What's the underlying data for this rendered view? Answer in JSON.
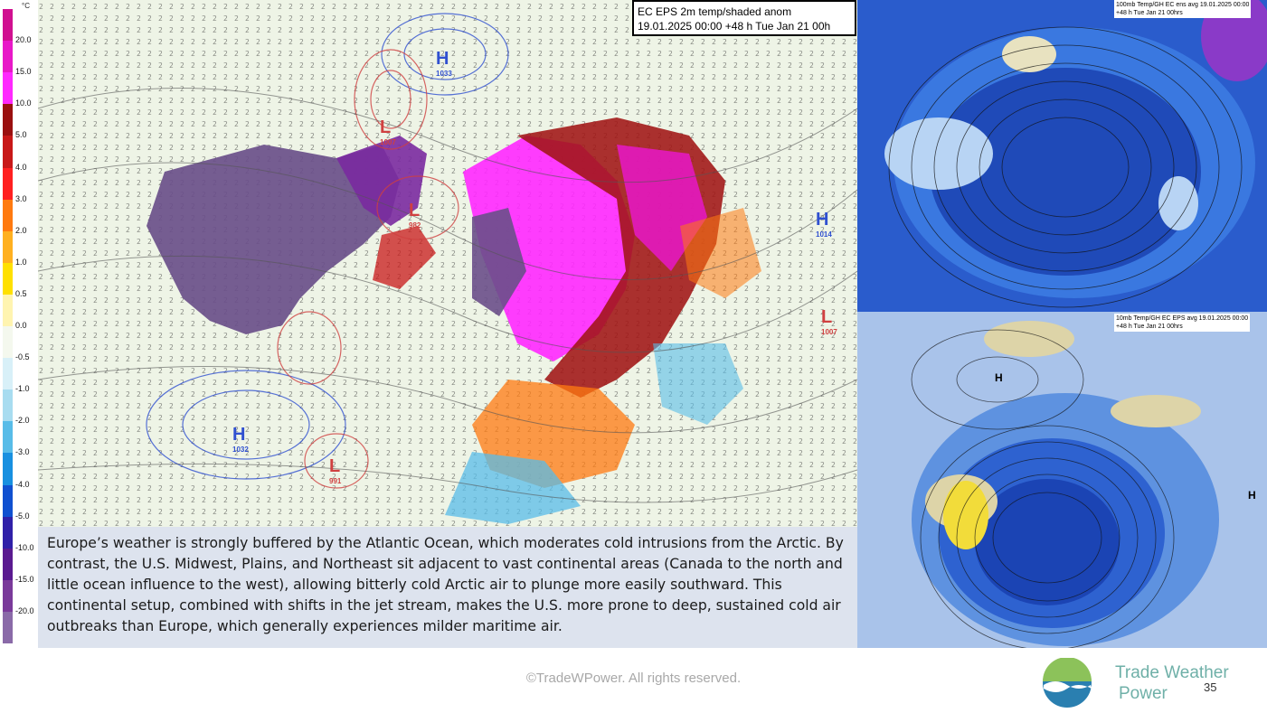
{
  "legend": {
    "unit": "°C",
    "ticks": [
      "20.0",
      "15.0",
      "10.0",
      "5.0",
      "4.0",
      "3.0",
      "2.0",
      "1.0",
      "0.5",
      "0.0",
      "-0.5",
      "-1.0",
      "-2.0",
      "-3.0",
      "-4.0",
      "-5.0",
      "-10.0",
      "-15.0",
      "-20.0"
    ],
    "colors": [
      "#d01090",
      "#e818c8",
      "#ff28ff",
      "#9a1010",
      "#c81818",
      "#ff2020",
      "#ff7a10",
      "#ffb020",
      "#ffe000",
      "#fff4b0",
      "#f4f8ee",
      "#d8f0f8",
      "#a8dcf0",
      "#58bce8",
      "#1890e0",
      "#1050d0",
      "#3020a8",
      "#5a1a90",
      "#7a3a9a",
      "#8a6aa8"
    ]
  },
  "main_map": {
    "title_line1": "EC EPS 2m temp/shaded anom",
    "title_line2": "19.01.2025 00:00 +48 h Tue Jan 21 00h",
    "pressure_labels": [
      {
        "letter": "H",
        "value": "1033"
      },
      {
        "letter": "L",
        "value": "1007"
      },
      {
        "letter": "H",
        "value": "1032"
      },
      {
        "letter": "L",
        "value": "991"
      },
      {
        "letter": "L",
        "value": "982"
      },
      {
        "letter": "H",
        "value": "1014"
      },
      {
        "letter": "L",
        "value": "1007"
      }
    ]
  },
  "top_right_map": {
    "title_line1": "100mb Temp/GH  EC ens avg 19.01.2025 00:00",
    "title_line2": "+48 h Tue Jan 21 00hrs"
  },
  "bottom_right_map": {
    "title_line1": "10mb Temp/GH EC EPS avg 19.01.2025 00:00",
    "title_line2": "+48 h Tue Jan 21 00hrs",
    "labels": [
      "H",
      "H"
    ]
  },
  "caption": "Europe’s weather is strongly buffered by the Atlantic Ocean, which moderates cold intrusions from the Arctic. By contrast, the U.S. Midwest, Plains, and Northeast sit adjacent to vast continental areas (Canada to the north and little ocean influence to the west), allowing bitterly cold Arctic air to plunge more easily southward. This continental setup, combined with shifts in the jet stream, makes the U.S. more prone to deep, sustained cold air outbreaks than Europe, which generally experiences milder maritime air.",
  "footer": {
    "copyright": "©TradeWPower. All rights reserved.",
    "brand_line1": "Trade Weather",
    "brand_line2": "Power",
    "page_number": "35"
  }
}
